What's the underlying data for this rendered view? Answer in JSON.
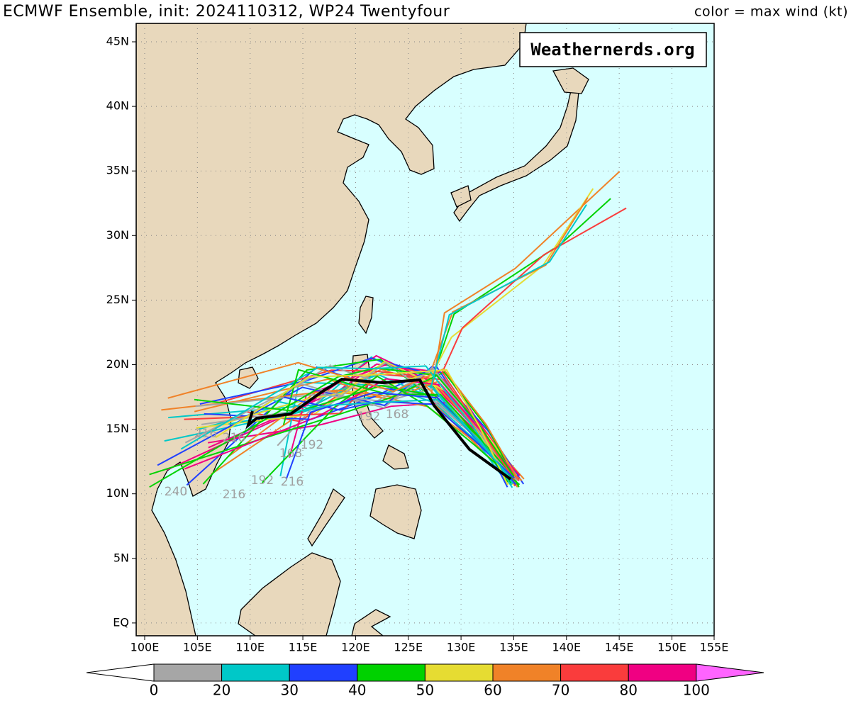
{
  "header": {
    "title": "ECMWF Ensemble, init: 2024110312, WP24 Twentyfour",
    "legend_title": "color = max wind (kt)"
  },
  "watermark": "Weathernerds.org",
  "lat_labels": [
    "45N",
    "40N",
    "35N",
    "30N",
    "25N",
    "20N",
    "15N",
    "10N",
    "5N",
    "EQ"
  ],
  "lon_labels": [
    "100E",
    "105E",
    "110E",
    "115E",
    "120E",
    "125E",
    "130E",
    "135E",
    "140E",
    "145E",
    "150E",
    "155E"
  ],
  "hour_labels": [
    "240",
    "216",
    "216",
    "192",
    "216",
    "168",
    "192",
    "216",
    "192",
    "168"
  ],
  "colorbar": {
    "labels": [
      "0",
      "20",
      "30",
      "40",
      "50",
      "60",
      "70",
      "80",
      "100"
    ],
    "colors": [
      "#ffffff",
      "#a6a6a6",
      "#00c8c8",
      "#2040ff",
      "#00d200",
      "#e6dc32",
      "#f08228",
      "#fa3c3c",
      "#f00082",
      "#ff64ff"
    ]
  }
}
